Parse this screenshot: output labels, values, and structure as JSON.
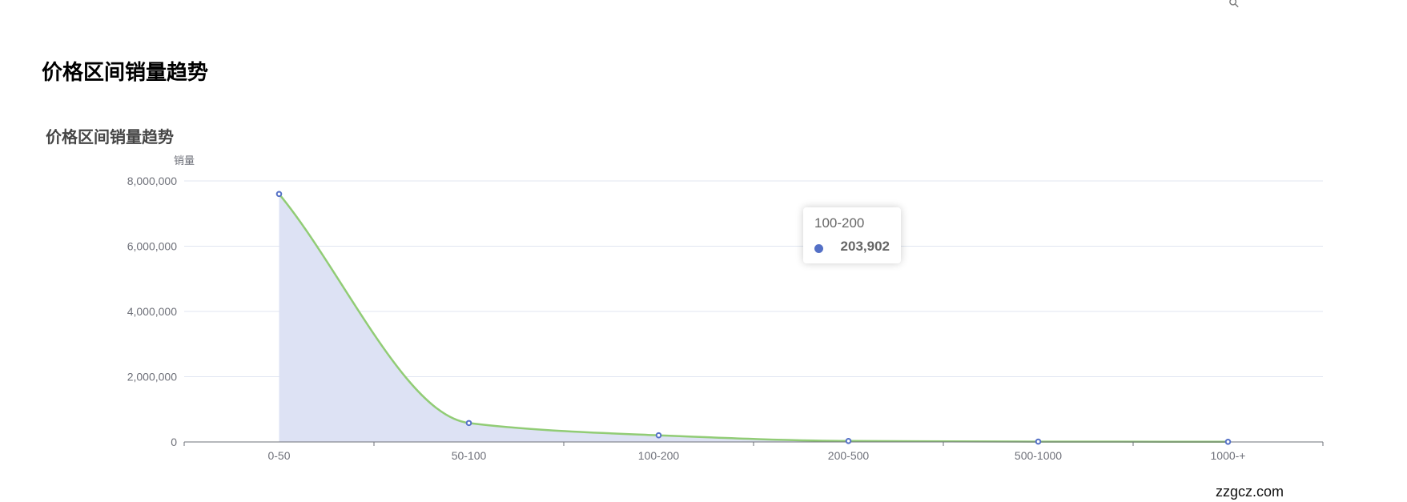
{
  "page": {
    "title": "价格区间销量趋势",
    "watermark": "zzgcz.com"
  },
  "colors": {
    "series": "#5470c6",
    "line": "#91cc75",
    "area": "#dde2f4",
    "grid": "#e0e6f1",
    "axis": "#6e7079"
  },
  "toolbar": {
    "icon": "pin-icon"
  },
  "chart_data": {
    "type": "area",
    "title": "价格区间销量趋势",
    "ylabel": "销量",
    "xlabel": "",
    "categories": [
      "0-50",
      "50-100",
      "100-200",
      "200-500",
      "500-1000",
      "1000-+"
    ],
    "values": [
      7600000,
      580000,
      203902,
      30000,
      10000,
      5000
    ],
    "ylim": [
      0,
      8000000
    ],
    "yticks": [
      "0",
      "2,000,000",
      "4,000,000",
      "6,000,000",
      "8,000,000"
    ],
    "smooth": true,
    "grid": true,
    "tooltip": {
      "category": "100-200",
      "value": "203,902"
    }
  }
}
